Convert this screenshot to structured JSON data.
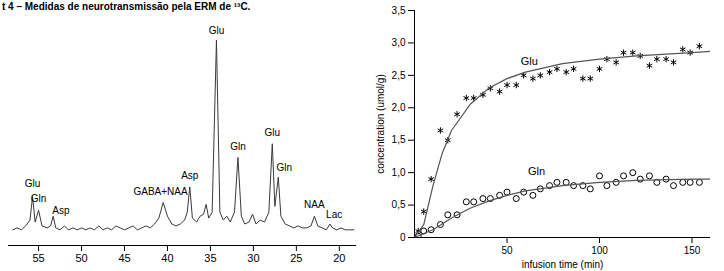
{
  "chart_data": [
    {
      "type": "line",
      "title": "t 4 – Medidas de neurotransmissão pela ERM de ¹³C.",
      "x": [
        58,
        57.5,
        57,
        56.5,
        56,
        55.7,
        55.4,
        55.0,
        54.6,
        54,
        53.6,
        53.3,
        53,
        52.5,
        52,
        51.5,
        51,
        50.5,
        50,
        49.5,
        49,
        48.5,
        48,
        47.5,
        47,
        46.5,
        46,
        45.5,
        45,
        44.5,
        44,
        43.5,
        43,
        42.5,
        42,
        41.5,
        41,
        40.5,
        40,
        39.5,
        39,
        38.5,
        38,
        37.7,
        37.4,
        37.1,
        36.6,
        36.2,
        35.8,
        35.5,
        35.2,
        34.8,
        34.3,
        33.9,
        33.5,
        33.1,
        32.7,
        32.2,
        31.8,
        31.4,
        31,
        30.5,
        30.1,
        29.7,
        29.2,
        28.7,
        28.2,
        27.8,
        27.5,
        27.1,
        26.8,
        26.3,
        25.8,
        25.3,
        24.8,
        24.3,
        23.8,
        23.3,
        22.9,
        22.5,
        22,
        21.5,
        21.1,
        20.8,
        20.3,
        19.8,
        19.3,
        18.8,
        18.3
      ],
      "values": [
        3,
        4,
        3,
        5,
        8,
        20,
        7,
        13,
        5,
        4,
        5,
        10,
        4,
        3,
        5,
        3,
        4,
        3,
        4,
        3,
        4,
        3,
        5,
        3,
        4,
        3,
        5,
        4,
        3,
        4,
        5,
        3,
        4,
        5,
        4,
        6,
        9,
        17,
        10,
        6,
        5,
        6,
        8,
        12,
        25,
        9,
        7,
        10,
        11,
        16,
        9,
        12,
        100,
        12,
        8,
        10,
        7,
        12,
        40,
        10,
        6,
        7,
        11,
        6,
        8,
        7,
        12,
        47,
        15,
        30,
        10,
        6,
        5,
        4,
        5,
        4,
        4,
        5,
        10,
        5,
        4,
        3,
        6,
        4,
        3,
        4,
        3,
        3,
        3
      ],
      "color": "#3a3a3a",
      "xlim": [
        58.5,
        18
      ],
      "xticks": [
        55,
        50,
        45,
        40,
        35,
        30,
        25,
        20
      ],
      "ylim": [
        -5,
        110
      ],
      "tick_labels": "x",
      "annotations": [
        {
          "text": "Glu",
          "x": 55.7,
          "y": 25
        },
        {
          "text": "Gln",
          "x": 55.0,
          "y": 17
        },
        {
          "text": "Asp",
          "x": 52.4,
          "y": 11
        },
        {
          "text": "GABA+NAA",
          "x": 40.8,
          "y": 21
        },
        {
          "text": "Asp",
          "x": 37.4,
          "y": 29
        },
        {
          "text": "Glu",
          "x": 34.3,
          "y": 103
        },
        {
          "text": "Gln",
          "x": 31.8,
          "y": 44
        },
        {
          "text": "Glu",
          "x": 27.8,
          "y": 51
        },
        {
          "text": "Gln",
          "x": 26.4,
          "y": 33
        },
        {
          "text": "NAA",
          "x": 22.9,
          "y": 14
        },
        {
          "text": "Lac",
          "x": 20.6,
          "y": 9
        }
      ]
    },
    {
      "type": "scatter",
      "x_label": "infusion time (min)",
      "y_label": "concentration (umol/g)",
      "xlim": [
        0,
        160
      ],
      "xticks": [
        50,
        100,
        150
      ],
      "ylim": [
        0,
        3.5
      ],
      "yticks": [
        0,
        {
          "value": 0.5,
          "label": "0,5"
        },
        {
          "value": 1.0,
          "label": "1,0"
        },
        {
          "value": 1.5,
          "label": "1,5"
        },
        {
          "value": 2.0,
          "label": "2,0"
        },
        {
          "value": 2.5,
          "label": "2,5"
        },
        {
          "value": 3.0,
          "label": "3,0"
        },
        {
          "value": 3.5,
          "label": "3,5"
        }
      ],
      "series": [
        {
          "name": "Glu",
          "type": "scatter",
          "marker": "asterisk",
          "color": "#000000",
          "x": [
            2,
            5,
            9,
            14,
            18,
            23,
            28,
            32,
            37,
            41,
            46,
            50,
            55,
            59,
            64,
            68,
            73,
            77,
            82,
            86,
            91,
            95,
            100,
            104,
            109,
            113,
            118,
            122,
            127,
            131,
            136,
            140,
            145,
            149,
            154
          ],
          "values": [
            0.1,
            0.4,
            0.9,
            1.65,
            1.5,
            1.9,
            2.15,
            2.15,
            2.2,
            2.3,
            2.25,
            2.35,
            2.35,
            2.5,
            2.45,
            2.5,
            2.55,
            2.6,
            2.55,
            2.6,
            2.45,
            2.45,
            2.6,
            2.75,
            2.7,
            2.85,
            2.85,
            2.8,
            2.65,
            2.75,
            2.75,
            2.7,
            2.9,
            2.85,
            2.95
          ]
        },
        {
          "name": "Gln",
          "type": "scatter",
          "marker": "circle",
          "color": "#000000",
          "x": [
            2,
            5,
            9,
            14,
            18,
            23,
            28,
            32,
            37,
            41,
            46,
            50,
            55,
            59,
            64,
            68,
            73,
            77,
            82,
            86,
            91,
            95,
            100,
            104,
            109,
            113,
            118,
            122,
            127,
            131,
            136,
            140,
            145,
            149,
            154
          ],
          "values": [
            0.02,
            0.1,
            0.12,
            0.2,
            0.35,
            0.35,
            0.55,
            0.55,
            0.6,
            0.6,
            0.65,
            0.7,
            0.6,
            0.7,
            0.65,
            0.75,
            0.8,
            0.85,
            0.85,
            0.8,
            0.8,
            0.75,
            0.95,
            0.8,
            0.85,
            0.95,
            1.0,
            0.9,
            0.95,
            0.85,
            0.9,
            0.8,
            0.85,
            0.85,
            0.85
          ]
        },
        {
          "name": "Glu",
          "type": "line",
          "line_style": "solid",
          "color": "#555555",
          "x": [
            0,
            5,
            10,
            15,
            20,
            30,
            40,
            50,
            60,
            80,
            100,
            120,
            150,
            160
          ],
          "values": [
            0,
            0.2,
            0.8,
            1.3,
            1.65,
            2.05,
            2.3,
            2.45,
            2.55,
            2.68,
            2.75,
            2.8,
            2.85,
            2.87
          ]
        },
        {
          "name": "Gln",
          "type": "line",
          "line_style": "solid",
          "color": "#555555",
          "x": [
            0,
            10,
            20,
            30,
            40,
            50,
            60,
            80,
            100,
            120,
            150,
            160
          ],
          "values": [
            0,
            0.12,
            0.3,
            0.45,
            0.56,
            0.65,
            0.72,
            0.8,
            0.85,
            0.88,
            0.9,
            0.9
          ]
        }
      ],
      "annotations": [
        {
          "text": "Glu",
          "x": 62,
          "y": 2.72
        },
        {
          "text": "Gln",
          "x": 66,
          "y": 1.02
        }
      ]
    }
  ]
}
